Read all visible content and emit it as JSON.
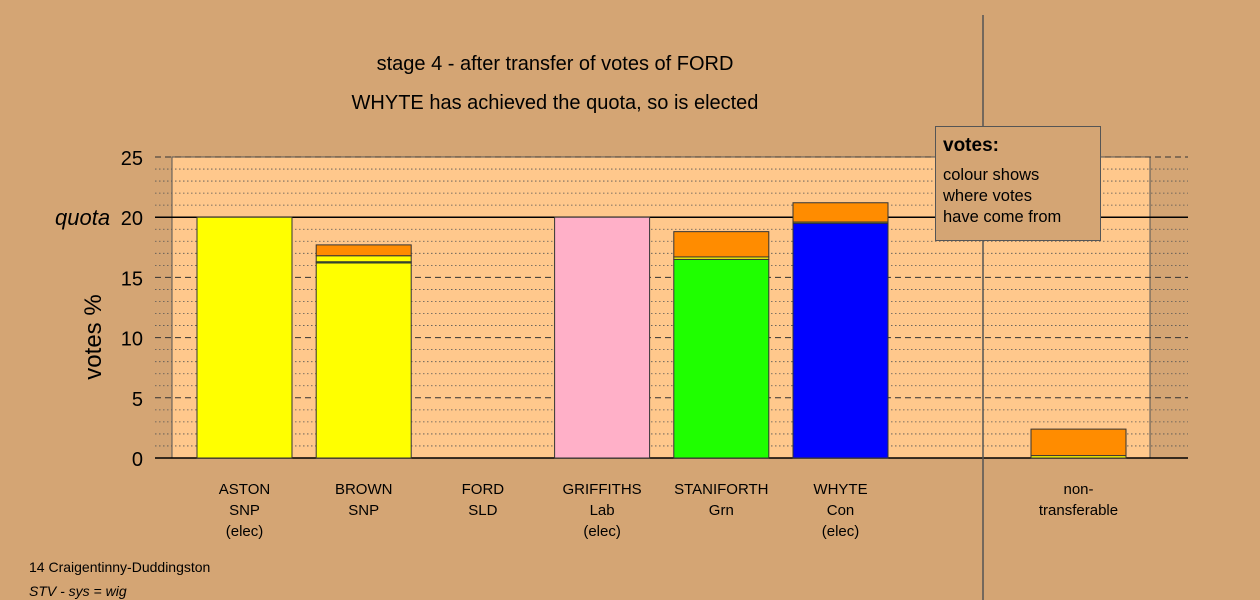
{
  "chart_data": {
    "type": "bar",
    "title": "stage 4 - after transfer of votes of FORD",
    "subtitle": "WHYTE has achieved the quota, so is elected",
    "ylabel": "votes %",
    "quota_label": "quota",
    "quota": 20,
    "ylim": [
      0,
      25
    ],
    "yticks": [
      0,
      5,
      10,
      15,
      20,
      25
    ],
    "grid": true,
    "legend": {
      "title": "votes:",
      "lines": [
        "colour shows",
        "where votes",
        "have come from"
      ],
      "placement": "top-right"
    },
    "candidates": [
      {
        "name": "ASTON",
        "party": "SNP",
        "status": "(elec)",
        "segments": [
          {
            "value": 20.0,
            "color": "#ffff00"
          }
        ]
      },
      {
        "name": "BROWN",
        "party": "SNP",
        "status": "",
        "segments": [
          {
            "value": 16.2,
            "color": "#ffff00"
          },
          {
            "value": 0.1,
            "color": "#1fff00"
          },
          {
            "value": 0.5,
            "color": "#ffff00"
          },
          {
            "value": 0.9,
            "color": "#ff8c00"
          }
        ]
      },
      {
        "name": "FORD",
        "party": "SLD",
        "status": "",
        "segments": []
      },
      {
        "name": "GRIFFITHS",
        "party": "Lab",
        "status": "(elec)",
        "segments": [
          {
            "value": 20.0,
            "color": "#ffb0c8"
          }
        ]
      },
      {
        "name": "STANIFORTH",
        "party": "Grn",
        "status": "",
        "segments": [
          {
            "value": 16.5,
            "color": "#1fff00"
          },
          {
            "value": 0.2,
            "color": "#ffff00"
          },
          {
            "value": 2.1,
            "color": "#ff8c00"
          }
        ]
      },
      {
        "name": "WHYTE",
        "party": "Con",
        "status": "(elec)",
        "segments": [
          {
            "value": 19.5,
            "color": "#0000ff"
          },
          {
            "value": 0.1,
            "color": "#ffff00"
          },
          {
            "value": 1.6,
            "color": "#ff8c00"
          }
        ]
      }
    ],
    "non_transferable": {
      "label_line1": "non-",
      "label_line2": "transferable",
      "segments": [
        {
          "value": 0.2,
          "color": "#ffff00"
        },
        {
          "value": 2.2,
          "color": "#ff8c00"
        }
      ]
    },
    "colors": {
      "background": "#d4a574",
      "plot_area": "#ffc88c",
      "snp": "#ffff00",
      "lab": "#ffb0c8",
      "grn": "#1fff00",
      "con": "#0000ff",
      "sld": "#ff8c00"
    }
  },
  "footer": {
    "line1": "14 Craigentinny-Duddingston",
    "line2": "STV - sys = wig"
  }
}
